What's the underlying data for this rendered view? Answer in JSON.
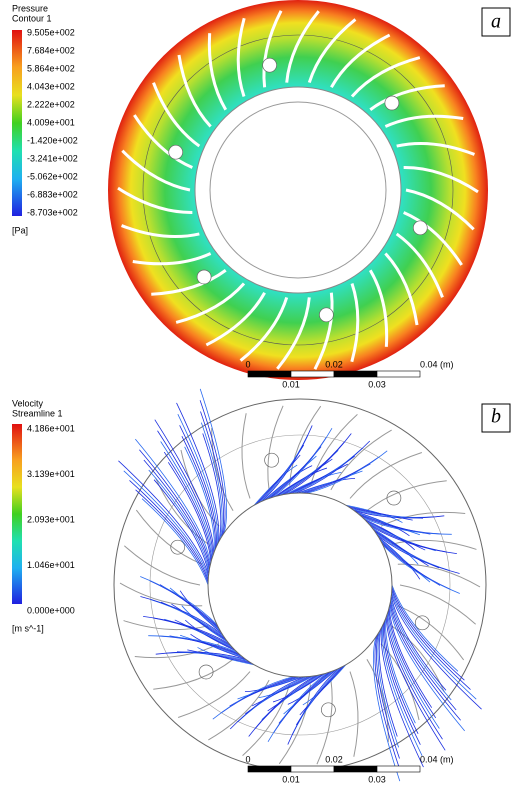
{
  "panels": [
    {
      "label": "a",
      "legend": {
        "title": "Pressure",
        "subtitle": "Contour 1",
        "labels": [
          "9.505e+002",
          "7.684e+002",
          "5.864e+002",
          "4.043e+002",
          "2.222e+002",
          "4.009e+001",
          "-1.420e+002",
          "-3.241e+002",
          "-5.062e+002",
          "-6.883e+002",
          "-8.703e+002"
        ],
        "unit": "[Pa]"
      },
      "scale": {
        "top": [
          "0",
          "0.02",
          "0.04 (m)"
        ],
        "bottom": [
          "0.01",
          "0.03"
        ]
      }
    },
    {
      "label": "b",
      "legend": {
        "title": "Velocity",
        "subtitle": "Streamline 1",
        "labels": [
          "4.186e+001",
          "3.139e+001",
          "2.093e+001",
          "1.046e+001",
          "0.000e+000"
        ],
        "unit": "[m s^-1]"
      },
      "scale": {
        "top": [
          "0",
          "0.02",
          "0.04 (m)"
        ],
        "bottom": [
          "0.01",
          "0.03"
        ]
      }
    }
  ]
}
